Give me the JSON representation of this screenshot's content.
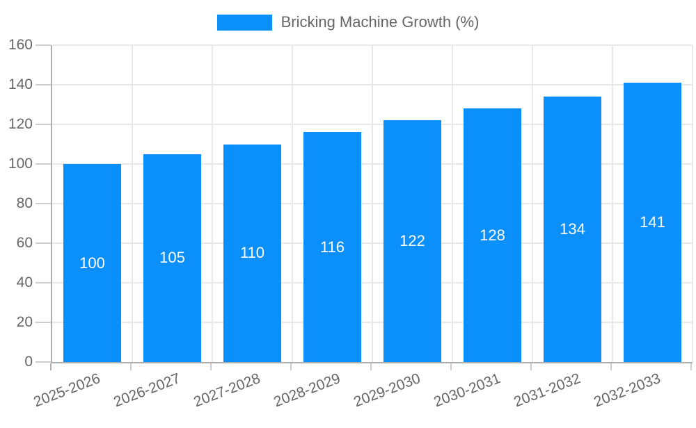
{
  "legend": {
    "label": "Bricking Machine Growth (%)"
  },
  "chart_data": {
    "type": "bar",
    "title": "Bricking Machine Growth (%)",
    "categories": [
      "2025-2026",
      "2026-2027",
      "2027-2028",
      "2028-2029",
      "2029-2030",
      "2030-2031",
      "2031-2032",
      "2032-2033"
    ],
    "values": [
      100,
      105,
      110,
      116,
      122,
      128,
      134,
      141
    ],
    "xlabel": "",
    "ylabel": "",
    "ylim": [
      0,
      160
    ],
    "y_ticks": [
      0,
      20,
      40,
      60,
      80,
      100,
      120,
      140,
      160
    ],
    "grid": true,
    "legend_position": "top",
    "value_labels": "inside-center",
    "bar_color": "#0b90fb",
    "value_label_color": "#ffffff",
    "colors": {
      "grid": "#e8e8e8",
      "axis": "#aeaeae",
      "tick": "#cccccc",
      "tick_text": "#666666",
      "legend_text": "#666666",
      "background": "#ffffff"
    }
  }
}
